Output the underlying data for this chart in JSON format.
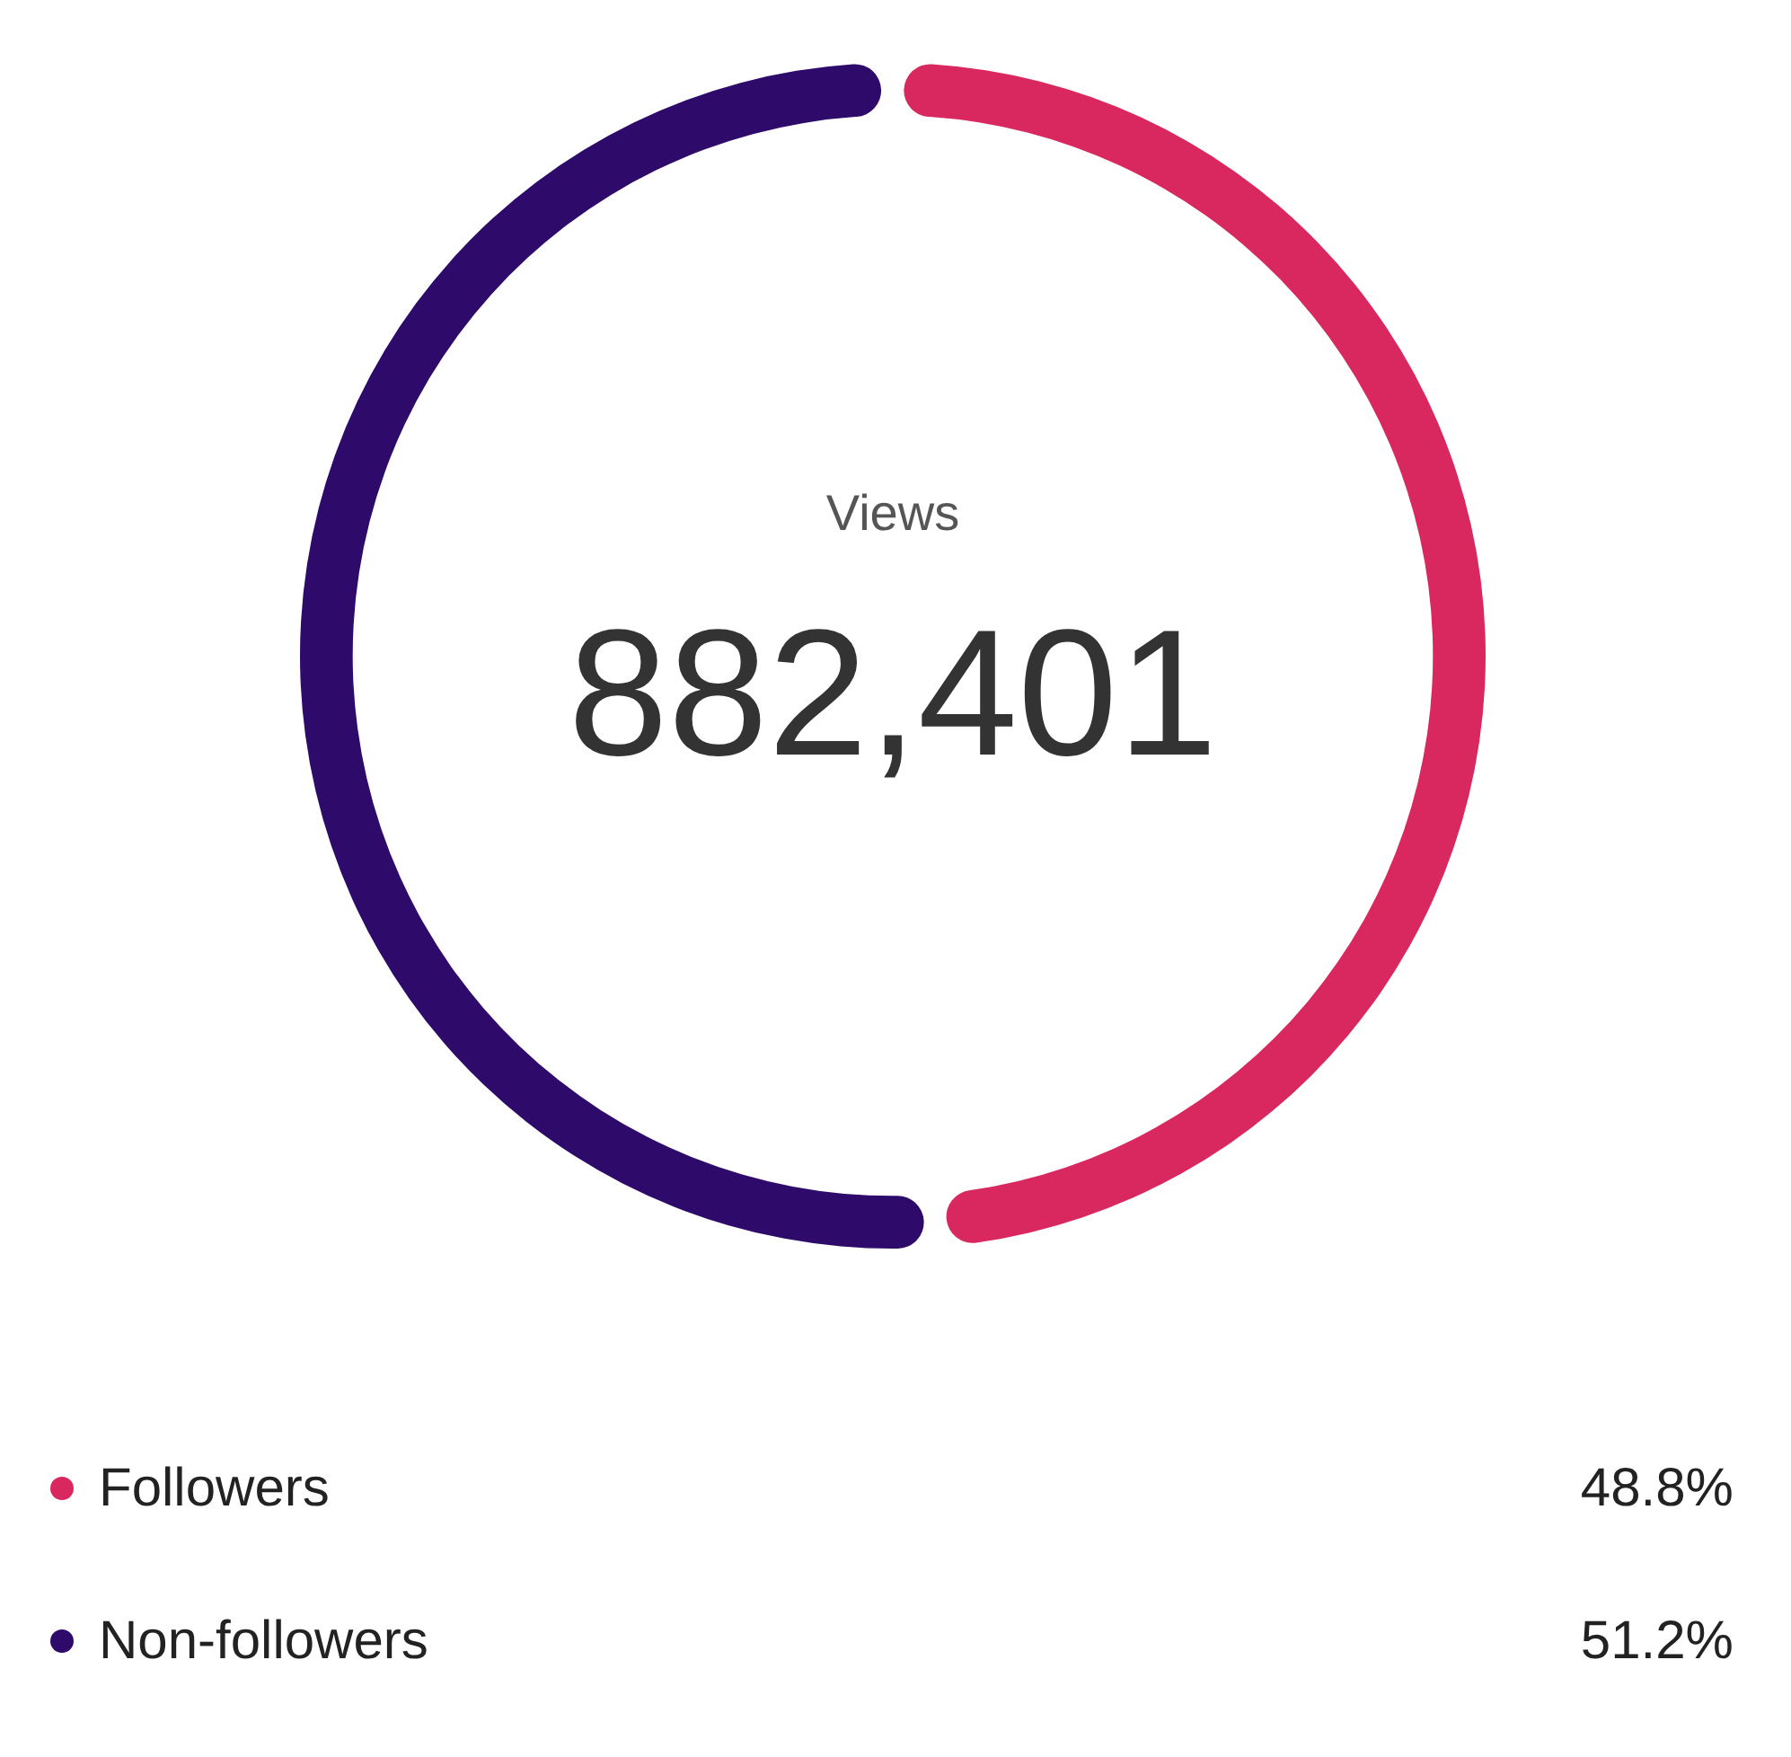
{
  "chart_data": {
    "type": "donut",
    "title": "Views",
    "subtitle": "882,401",
    "categories": [
      "Followers",
      "Non-followers"
    ],
    "values": [
      48.8,
      51.2
    ],
    "colors": [
      "#d9285f",
      "#2e0a6b"
    ],
    "value_labels": [
      "48.8%",
      "51.2%"
    ],
    "legend": "bottom"
  }
}
